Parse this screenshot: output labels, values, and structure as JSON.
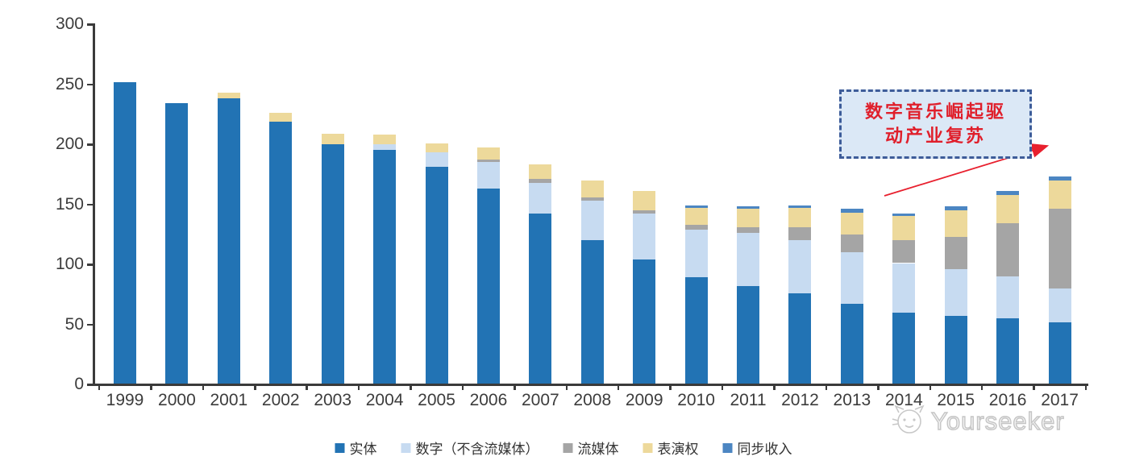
{
  "chart_data": {
    "type": "bar",
    "stacked": true,
    "categories": [
      "1999",
      "2000",
      "2001",
      "2002",
      "2003",
      "2004",
      "2005",
      "2006",
      "2007",
      "2008",
      "2009",
      "2010",
      "2011",
      "2012",
      "2013",
      "2014",
      "2015",
      "2016",
      "2017"
    ],
    "series": [
      {
        "name": "实体",
        "color": "#2273B4",
        "values": [
          252,
          234,
          238,
          219,
          200,
          195,
          181,
          163,
          142,
          120,
          104,
          89,
          82,
          76,
          67,
          60,
          57,
          55,
          52
        ]
      },
      {
        "name": "数字（不含流媒体）",
        "color": "#C7DBF1",
        "values": [
          0,
          0,
          0,
          0,
          0,
          5,
          12,
          22,
          26,
          33,
          38,
          40,
          44,
          44,
          43,
          41,
          39,
          35,
          28
        ]
      },
      {
        "name": "流媒体",
        "color": "#A5A5A5",
        "values": [
          0,
          0,
          0,
          0,
          0,
          0,
          0,
          2,
          3,
          3,
          3,
          4,
          5,
          11,
          15,
          19,
          27,
          44,
          66
        ]
      },
      {
        "name": "表演权",
        "color": "#EDD99B",
        "values": [
          0,
          0,
          5,
          7,
          9,
          8,
          8,
          10,
          12,
          14,
          16,
          14,
          15,
          16,
          18,
          20,
          22,
          24,
          24
        ]
      },
      {
        "name": "同步收入",
        "color": "#4C86C2",
        "values": [
          0,
          0,
          0,
          0,
          0,
          0,
          0,
          0,
          0,
          0,
          0,
          2,
          2,
          2,
          3,
          2,
          3,
          3,
          3
        ]
      }
    ],
    "ylim": [
      0,
      300
    ],
    "yticks": [
      0,
      50,
      100,
      150,
      200,
      250,
      300
    ],
    "xlabel": "",
    "ylabel": "",
    "grid": false,
    "legend_position": "bottom"
  },
  "annotation": {
    "line1": "数字音乐崛起驱",
    "line2": "动产业复苏",
    "text_color": "#E01F2B",
    "box_fill": "#DBE8F6",
    "box_border_color": "#3D5C99",
    "arrow_color": "#E8202E"
  },
  "watermark": {
    "text": "Yourseeker"
  },
  "colors": {
    "axis": "#3A3A3A",
    "tick_label": "#3C3C3C",
    "background": "#FFFFFF"
  }
}
